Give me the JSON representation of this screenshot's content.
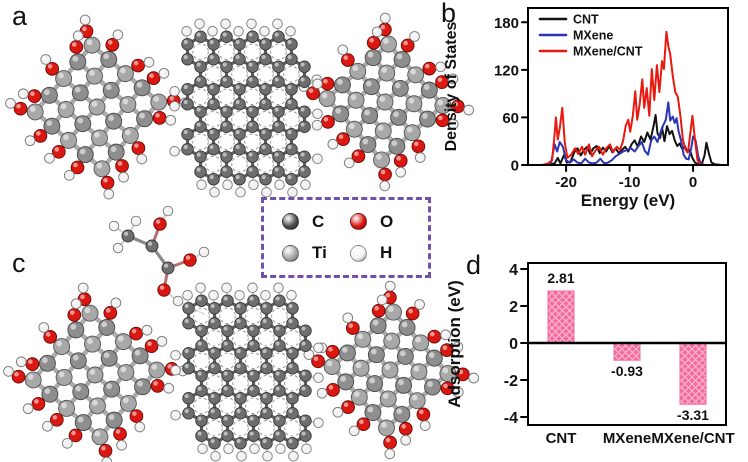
{
  "figure": {
    "background": "#ffffff",
    "panel_labels": {
      "a": "a",
      "b": "b",
      "c": "c",
      "d": "d"
    }
  },
  "atom_legend": {
    "border_color": "#7050a8",
    "items": [
      {
        "symbol": "C",
        "color": "#4d4d4d"
      },
      {
        "symbol": "O",
        "color": "#da1710"
      },
      {
        "symbol": "Ti",
        "color": "#a8a8a8"
      },
      {
        "symbol": "H",
        "color": "#f2f2f2"
      }
    ]
  },
  "chart_data": [
    {
      "id": "dos",
      "type": "line",
      "title": "",
      "xlabel": "Energy (eV)",
      "ylabel": "Density of States",
      "xlim": [
        -26,
        5.5
      ],
      "ylim": [
        0,
        198
      ],
      "xticks": [
        -20,
        -10,
        0
      ],
      "yticks": [
        0,
        60,
        120,
        180
      ],
      "grid": false,
      "legend_position": "top-left",
      "series": [
        {
          "name": "CNT",
          "color": "#111111",
          "points": [
            [
              -25,
              0
            ],
            [
              -23.5,
              0
            ],
            [
              -22.5,
              1
            ],
            [
              -21.8,
              2
            ],
            [
              -21.3,
              9
            ],
            [
              -20.9,
              2
            ],
            [
              -20.3,
              13
            ],
            [
              -19.9,
              3
            ],
            [
              -19.3,
              4
            ],
            [
              -18.7,
              16
            ],
            [
              -18.2,
              21
            ],
            [
              -17.7,
              12
            ],
            [
              -17.2,
              19
            ],
            [
              -16.7,
              23
            ],
            [
              -16.2,
              14
            ],
            [
              -15.7,
              21
            ],
            [
              -15.2,
              24
            ],
            [
              -14.7,
              15
            ],
            [
              -14.2,
              22
            ],
            [
              -13.7,
              17
            ],
            [
              -13.2,
              24
            ],
            [
              -12.7,
              16
            ],
            [
              -12.2,
              21
            ],
            [
              -11.7,
              15
            ],
            [
              -11.2,
              19
            ],
            [
              -10.7,
              23
            ],
            [
              -10.2,
              17
            ],
            [
              -9.7,
              26
            ],
            [
              -9.2,
              31
            ],
            [
              -8.7,
              23
            ],
            [
              -8.2,
              36
            ],
            [
              -7.7,
              29
            ],
            [
              -7.2,
              41
            ],
            [
              -6.7,
              32
            ],
            [
              -6.2,
              50
            ],
            [
              -5.9,
              63
            ],
            [
              -5.6,
              40
            ],
            [
              -5.2,
              34
            ],
            [
              -4.9,
              47
            ],
            [
              -4.5,
              30
            ],
            [
              -4.1,
              49
            ],
            [
              -3.7,
              39
            ],
            [
              -3.3,
              43
            ],
            [
              -2.9,
              31
            ],
            [
              -2.5,
              24
            ],
            [
              -2.1,
              27
            ],
            [
              -1.7,
              20
            ],
            [
              -1.3,
              24
            ],
            [
              -0.9,
              16
            ],
            [
              -0.5,
              19
            ],
            [
              -0.1,
              9
            ],
            [
              0.3,
              3
            ],
            [
              0.8,
              1
            ],
            [
              1.4,
              2
            ],
            [
              1.8,
              12
            ],
            [
              2.1,
              28
            ],
            [
              2.5,
              14
            ],
            [
              2.9,
              3
            ],
            [
              3.4,
              1
            ],
            [
              4.5,
              0
            ]
          ]
        },
        {
          "name": "MXene",
          "color": "#2b35b5",
          "points": [
            [
              -25,
              0
            ],
            [
              -23.5,
              0
            ],
            [
              -22.4,
              2
            ],
            [
              -21.8,
              26
            ],
            [
              -21.4,
              17
            ],
            [
              -21,
              29
            ],
            [
              -20.5,
              23
            ],
            [
              -20,
              6
            ],
            [
              -19.4,
              3
            ],
            [
              -18.8,
              7
            ],
            [
              -18.2,
              3
            ],
            [
              -17.6,
              2
            ],
            [
              -17,
              8
            ],
            [
              -16.4,
              3
            ],
            [
              -15.8,
              2
            ],
            [
              -15.2,
              3
            ],
            [
              -14.6,
              8
            ],
            [
              -14,
              2
            ],
            [
              -13.4,
              3
            ],
            [
              -12.8,
              6
            ],
            [
              -12.2,
              11
            ],
            [
              -11.6,
              14
            ],
            [
              -11,
              17
            ],
            [
              -10.4,
              19
            ],
            [
              -9.8,
              21
            ],
            [
              -9.2,
              17
            ],
            [
              -8.6,
              24
            ],
            [
              -8.1,
              29
            ],
            [
              -7.6,
              18
            ],
            [
              -7.1,
              13
            ],
            [
              -6.6,
              31
            ],
            [
              -6.1,
              36
            ],
            [
              -5.6,
              29
            ],
            [
              -5.1,
              42
            ],
            [
              -4.7,
              50
            ],
            [
              -4.3,
              57
            ],
            [
              -3.9,
              79
            ],
            [
              -3.6,
              56
            ],
            [
              -3.2,
              61
            ],
            [
              -2.9,
              53
            ],
            [
              -2.6,
              59
            ],
            [
              -2.3,
              43
            ],
            [
              -1.9,
              31
            ],
            [
              -1.5,
              13
            ],
            [
              -1.1,
              8
            ],
            [
              -0.7,
              7
            ],
            [
              -0.3,
              21
            ],
            [
              0,
              36
            ],
            [
              0.4,
              31
            ],
            [
              0.8,
              11
            ],
            [
              1.2,
              2
            ],
            [
              1.8,
              0
            ],
            [
              4.5,
              0
            ]
          ]
        },
        {
          "name": "MXene/CNT",
          "color": "#e8190f",
          "points": [
            [
              -25,
              0
            ],
            [
              -23.8,
              0
            ],
            [
              -22.8,
              2
            ],
            [
              -22.2,
              6
            ],
            [
              -21.8,
              40
            ],
            [
              -21.6,
              60
            ],
            [
              -21.3,
              32
            ],
            [
              -21,
              46
            ],
            [
              -20.6,
              72
            ],
            [
              -20.2,
              28
            ],
            [
              -19.8,
              9
            ],
            [
              -19.2,
              13
            ],
            [
              -18.6,
              21
            ],
            [
              -18.1,
              14
            ],
            [
              -17.5,
              23
            ],
            [
              -17,
              13
            ],
            [
              -16.4,
              26
            ],
            [
              -15.9,
              11
            ],
            [
              -15.3,
              19
            ],
            [
              -14.8,
              23
            ],
            [
              -14.2,
              13
            ],
            [
              -13.7,
              21
            ],
            [
              -13.1,
              26
            ],
            [
              -12.6,
              16
            ],
            [
              -12,
              23
            ],
            [
              -11.5,
              19
            ],
            [
              -11,
              31
            ],
            [
              -10.6,
              50
            ],
            [
              -10.2,
              57
            ],
            [
              -9.9,
              42
            ],
            [
              -9.5,
              62
            ],
            [
              -9.1,
              93
            ],
            [
              -8.8,
              57
            ],
            [
              -8.4,
              77
            ],
            [
              -8,
              108
            ],
            [
              -7.7,
              72
            ],
            [
              -7.3,
              97
            ],
            [
              -6.9,
              62
            ],
            [
              -6.5,
              121
            ],
            [
              -6.1,
              82
            ],
            [
              -5.7,
              126
            ],
            [
              -5.3,
              92
            ],
            [
              -4.9,
              131
            ],
            [
              -4.6,
              121
            ],
            [
              -4.2,
              168
            ],
            [
              -3.9,
              150
            ],
            [
              -3.6,
              140
            ],
            [
              -3.2,
              112
            ],
            [
              -2.8,
              92
            ],
            [
              -2.4,
              86
            ],
            [
              -2,
              62
            ],
            [
              -1.6,
              32
            ],
            [
              -1.2,
              19
            ],
            [
              -0.8,
              16
            ],
            [
              -0.4,
              42
            ],
            [
              -0.1,
              62
            ],
            [
              0.3,
              32
            ],
            [
              0.7,
              6
            ],
            [
              1.1,
              1
            ],
            [
              1.8,
              0
            ],
            [
              4.5,
              0
            ]
          ]
        }
      ]
    },
    {
      "id": "adsorption",
      "type": "bar",
      "title": "",
      "xlabel": "",
      "ylabel": "Adsorption (eV)",
      "categories": [
        "CNT",
        "MXene",
        "MXene/CNT"
      ],
      "values": [
        2.81,
        -0.93,
        -3.31
      ],
      "value_labels": [
        "2.81",
        "-0.93",
        "-3.31"
      ],
      "ylim": [
        -4.7,
        4.7
      ],
      "yticks": [
        -4,
        -2,
        0,
        2,
        4
      ],
      "grid": false,
      "bar_color": "#f4699e",
      "bar_hatch_color": "#fab4cd"
    }
  ]
}
